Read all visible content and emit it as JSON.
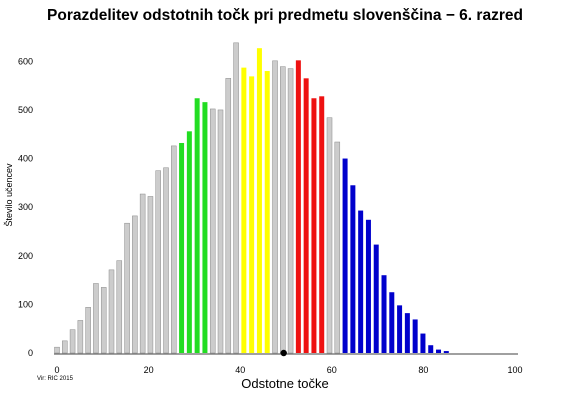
{
  "chart_data": {
    "type": "bar",
    "title": "Porazdelitev  odstotnih točk pri predmetu slovenščina  − 6. razred",
    "xlabel": "Odstotne točke",
    "ylabel": "Število učencev",
    "source": "Vir: RIC 2015",
    "xlim": [
      0,
      100
    ],
    "ylim": [
      0,
      650
    ],
    "xticks": [
      "0",
      "20",
      "40",
      "60",
      "80",
      "100"
    ],
    "yticks": [
      "0",
      "100",
      "200",
      "300",
      "400",
      "500",
      "600"
    ],
    "marker": {
      "x": 49.5,
      "y": 0,
      "color": "#000000"
    },
    "colors": {
      "grey": "#cccccc",
      "green": "#22dd22",
      "yellow": "#ffff00",
      "red": "#ee1111",
      "blue": "#0000cc"
    },
    "bars": [
      {
        "x": 0,
        "value": 12,
        "color": "grey"
      },
      {
        "x": 1.7,
        "value": 25,
        "color": "grey"
      },
      {
        "x": 3.4,
        "value": 48,
        "color": "grey"
      },
      {
        "x": 5.1,
        "value": 67,
        "color": "grey"
      },
      {
        "x": 6.8,
        "value": 94,
        "color": "grey"
      },
      {
        "x": 8.5,
        "value": 143,
        "color": "grey"
      },
      {
        "x": 10.2,
        "value": 135,
        "color": "grey"
      },
      {
        "x": 11.9,
        "value": 171,
        "color": "grey"
      },
      {
        "x": 13.6,
        "value": 190,
        "color": "grey"
      },
      {
        "x": 15.3,
        "value": 267,
        "color": "grey"
      },
      {
        "x": 17.0,
        "value": 282,
        "color": "grey"
      },
      {
        "x": 18.7,
        "value": 327,
        "color": "grey"
      },
      {
        "x": 20.4,
        "value": 322,
        "color": "grey"
      },
      {
        "x": 22.1,
        "value": 375,
        "color": "grey"
      },
      {
        "x": 23.8,
        "value": 381,
        "color": "grey"
      },
      {
        "x": 25.5,
        "value": 426,
        "color": "grey"
      },
      {
        "x": 27.2,
        "value": 432,
        "color": "green"
      },
      {
        "x": 28.9,
        "value": 456,
        "color": "green"
      },
      {
        "x": 30.6,
        "value": 524,
        "color": "green"
      },
      {
        "x": 32.3,
        "value": 516,
        "color": "green"
      },
      {
        "x": 34.0,
        "value": 502,
        "color": "grey"
      },
      {
        "x": 35.7,
        "value": 500,
        "color": "grey"
      },
      {
        "x": 37.4,
        "value": 565,
        "color": "grey"
      },
      {
        "x": 39.1,
        "value": 638,
        "color": "grey"
      },
      {
        "x": 40.8,
        "value": 587,
        "color": "yellow"
      },
      {
        "x": 42.5,
        "value": 569,
        "color": "yellow"
      },
      {
        "x": 44.2,
        "value": 627,
        "color": "yellow"
      },
      {
        "x": 45.9,
        "value": 580,
        "color": "yellow"
      },
      {
        "x": 47.6,
        "value": 601,
        "color": "grey"
      },
      {
        "x": 49.3,
        "value": 589,
        "color": "grey"
      },
      {
        "x": 51.0,
        "value": 585,
        "color": "grey"
      },
      {
        "x": 52.7,
        "value": 602,
        "color": "red"
      },
      {
        "x": 54.4,
        "value": 565,
        "color": "red"
      },
      {
        "x": 56.1,
        "value": 524,
        "color": "red"
      },
      {
        "x": 57.8,
        "value": 528,
        "color": "red"
      },
      {
        "x": 59.5,
        "value": 484,
        "color": "grey"
      },
      {
        "x": 61.2,
        "value": 434,
        "color": "grey"
      },
      {
        "x": 62.9,
        "value": 400,
        "color": "blue"
      },
      {
        "x": 64.6,
        "value": 345,
        "color": "blue"
      },
      {
        "x": 66.3,
        "value": 293,
        "color": "blue"
      },
      {
        "x": 68.0,
        "value": 274,
        "color": "blue"
      },
      {
        "x": 69.7,
        "value": 223,
        "color": "blue"
      },
      {
        "x": 71.4,
        "value": 160,
        "color": "blue"
      },
      {
        "x": 73.1,
        "value": 125,
        "color": "blue"
      },
      {
        "x": 74.8,
        "value": 98,
        "color": "blue"
      },
      {
        "x": 76.5,
        "value": 82,
        "color": "blue"
      },
      {
        "x": 78.2,
        "value": 69,
        "color": "blue"
      },
      {
        "x": 79.9,
        "value": 40,
        "color": "blue"
      },
      {
        "x": 81.6,
        "value": 16,
        "color": "blue"
      },
      {
        "x": 83.3,
        "value": 7,
        "color": "blue"
      },
      {
        "x": 85.0,
        "value": 4,
        "color": "blue"
      }
    ]
  }
}
